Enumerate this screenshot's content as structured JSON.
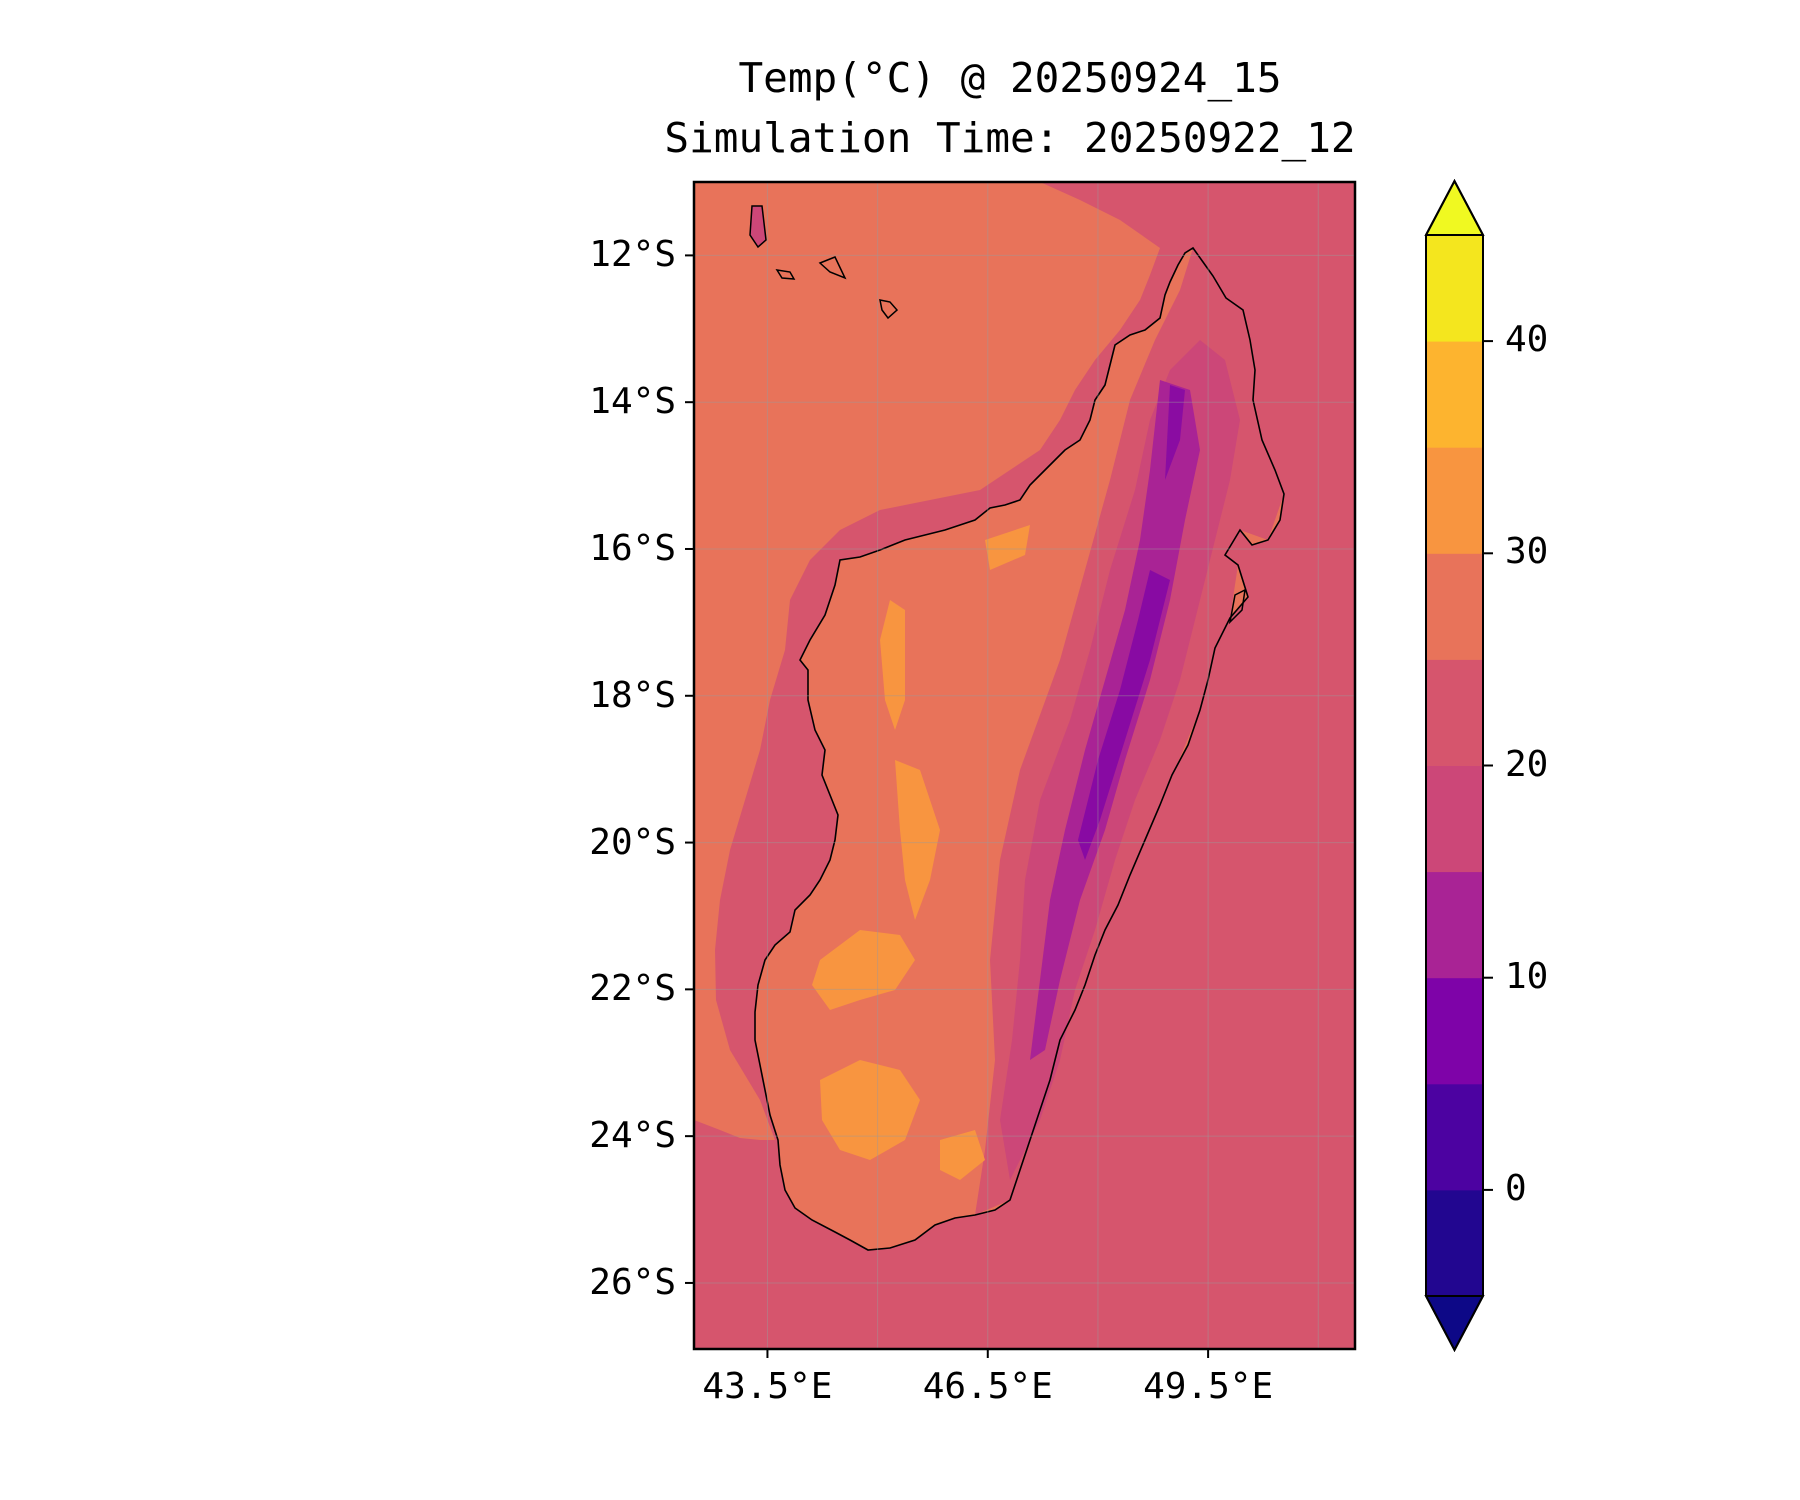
{
  "title_line1": "Temp(°C) @ 20250924_15",
  "title_line2": "Simulation Time: 20250922_12",
  "map": {
    "region": "Madagascar",
    "variable": "Temp(°C)",
    "lon_range": [
      42.5,
      51.5
    ],
    "lat_range": [
      -26.9,
      -11.0
    ],
    "lat_ticks": [
      {
        "value": -12,
        "label": "12°S"
      },
      {
        "value": -14,
        "label": "14°S"
      },
      {
        "value": -16,
        "label": "16°S"
      },
      {
        "value": -18,
        "label": "18°S"
      },
      {
        "value": -20,
        "label": "20°S"
      },
      {
        "value": -22,
        "label": "22°S"
      },
      {
        "value": -24,
        "label": "24°S"
      },
      {
        "value": -26,
        "label": "26°S"
      }
    ],
    "lon_ticks": [
      {
        "value": 43.5,
        "label": "43.5°E"
      },
      {
        "value": 46.5,
        "label": "46.5°E"
      },
      {
        "value": 49.5,
        "label": "49.5°E"
      }
    ],
    "ocean_temperature_bands": [
      {
        "range": [
          20,
          25
        ],
        "color": "#d6556d",
        "where": "east and south"
      },
      {
        "range": [
          25,
          30
        ],
        "color": "#e8735a",
        "where": "Mozambique Channel"
      }
    ],
    "grid": true
  },
  "colorbar": {
    "min": -5,
    "max": 45,
    "extend": "both",
    "levels": [
      -5,
      0,
      5,
      10,
      15,
      20,
      25,
      30,
      35,
      40,
      45
    ],
    "colors": [
      "#220690",
      "#4c02a1",
      "#7e03a8",
      "#a92395",
      "#cc4778",
      "#d6556d",
      "#e8735a",
      "#f89540",
      "#fdb42f",
      "#f4e61e"
    ],
    "under_color": "#0d0887",
    "over_color": "#f0f921",
    "ticks": [
      {
        "value": 0,
        "label": "0"
      },
      {
        "value": 10,
        "label": "10"
      },
      {
        "value": 20,
        "label": "20"
      },
      {
        "value": 30,
        "label": "30"
      },
      {
        "value": 40,
        "label": "40"
      }
    ]
  }
}
